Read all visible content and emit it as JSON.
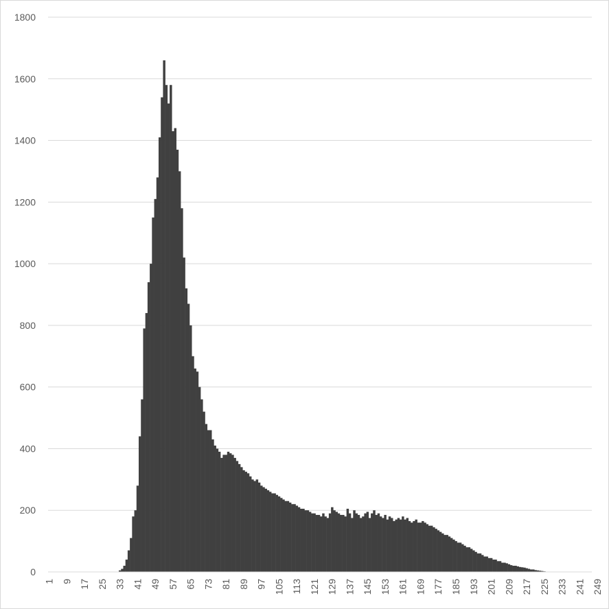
{
  "chart_data": {
    "type": "bar",
    "title": "",
    "xlabel": "",
    "ylabel": "",
    "ylim": [
      0,
      1800
    ],
    "yticks": [
      0,
      200,
      400,
      600,
      800,
      1000,
      1200,
      1400,
      1600,
      1800
    ],
    "x_range": [
      1,
      256
    ],
    "x_tick_labels": [
      "1",
      "9",
      "17",
      "25",
      "33",
      "41",
      "49",
      "57",
      "65",
      "73",
      "81",
      "89",
      "97",
      "105",
      "113",
      "121",
      "129",
      "137",
      "145",
      "153",
      "161",
      "169",
      "177",
      "185",
      "193",
      "201",
      "209",
      "217",
      "225",
      "233",
      "241",
      "249"
    ],
    "grid": "horizontal",
    "legend": "none",
    "bar_color": "#404040",
    "values": [
      0,
      0,
      0,
      0,
      0,
      0,
      0,
      0,
      0,
      0,
      0,
      0,
      0,
      0,
      0,
      0,
      0,
      0,
      0,
      0,
      0,
      0,
      0,
      0,
      0,
      0,
      0,
      0,
      0,
      0,
      0,
      0,
      5,
      10,
      20,
      40,
      70,
      110,
      180,
      200,
      280,
      440,
      560,
      790,
      840,
      940,
      1000,
      1150,
      1210,
      1280,
      1410,
      1540,
      1660,
      1580,
      1520,
      1580,
      1430,
      1440,
      1370,
      1300,
      1180,
      1020,
      920,
      870,
      800,
      700,
      660,
      650,
      600,
      560,
      520,
      480,
      460,
      460,
      430,
      410,
      400,
      390,
      370,
      380,
      380,
      390,
      385,
      380,
      370,
      360,
      350,
      340,
      330,
      325,
      320,
      310,
      300,
      295,
      300,
      290,
      280,
      275,
      270,
      265,
      260,
      255,
      255,
      250,
      245,
      240,
      235,
      230,
      230,
      225,
      220,
      220,
      215,
      210,
      205,
      205,
      200,
      200,
      195,
      190,
      190,
      185,
      185,
      180,
      190,
      180,
      175,
      190,
      210,
      200,
      195,
      190,
      185,
      185,
      180,
      205,
      190,
      175,
      200,
      190,
      185,
      175,
      180,
      190,
      195,
      175,
      190,
      200,
      185,
      190,
      180,
      175,
      185,
      170,
      180,
      175,
      165,
      170,
      175,
      170,
      180,
      170,
      175,
      165,
      160,
      165,
      170,
      160,
      160,
      165,
      160,
      155,
      150,
      150,
      145,
      140,
      135,
      130,
      125,
      120,
      120,
      115,
      110,
      105,
      100,
      95,
      95,
      90,
      85,
      80,
      80,
      75,
      70,
      65,
      60,
      60,
      55,
      50,
      50,
      45,
      45,
      40,
      40,
      35,
      35,
      30,
      30,
      28,
      25,
      22,
      20,
      20,
      18,
      16,
      15,
      14,
      12,
      10,
      8,
      8,
      6,
      5,
      4,
      3,
      2,
      1,
      0,
      0,
      0,
      0,
      0,
      0,
      0,
      0,
      0,
      0,
      0,
      0,
      0,
      0,
      0,
      0,
      0,
      0,
      0,
      0
    ]
  }
}
